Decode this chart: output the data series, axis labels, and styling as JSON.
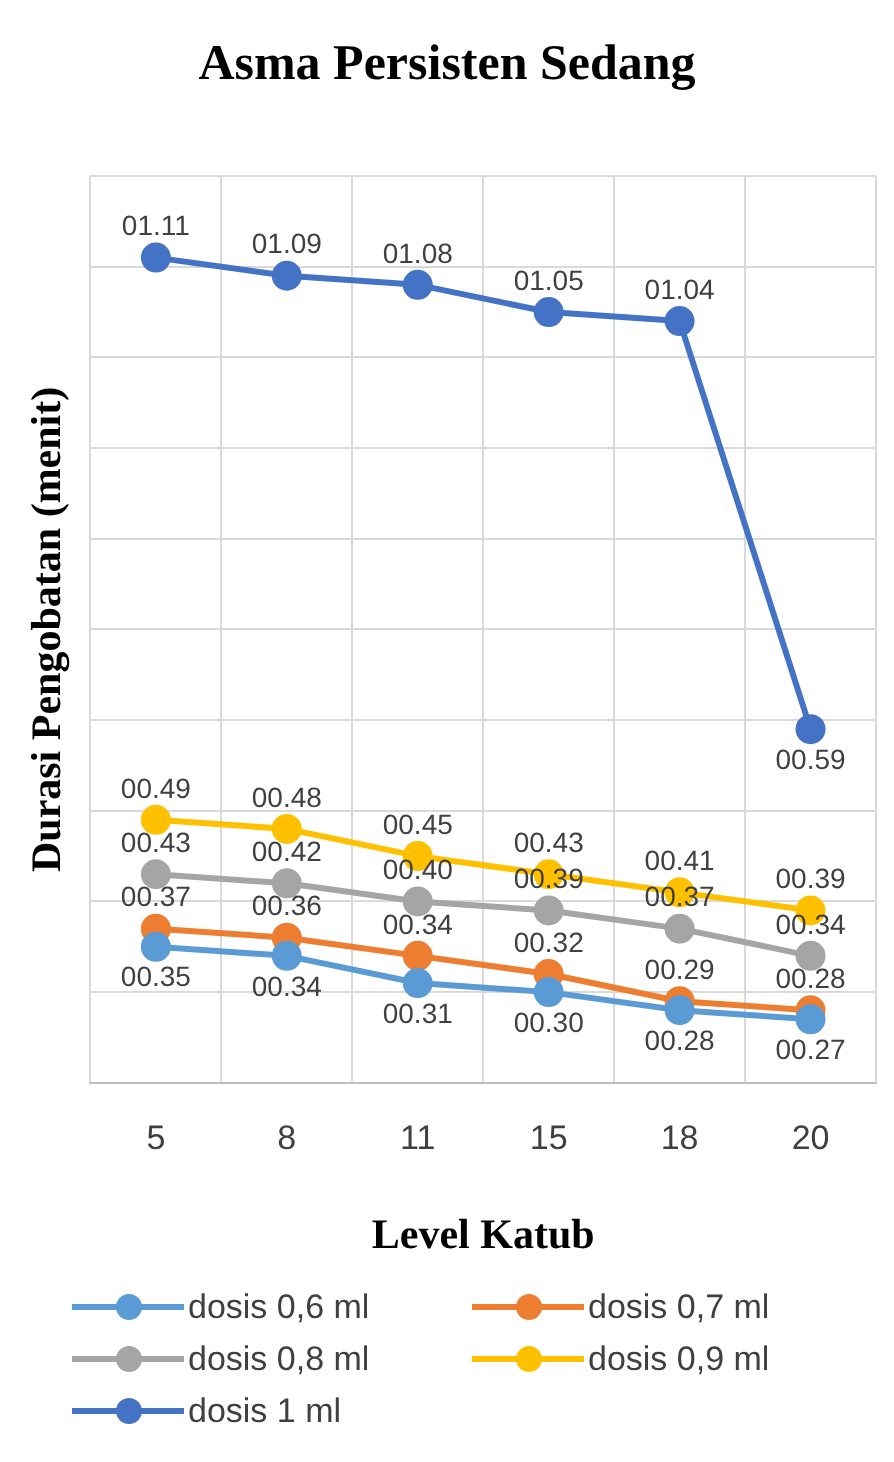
{
  "chart_data": {
    "type": "line",
    "title": "Asma Persisten Sedang",
    "xlabel": "Level Katub",
    "ylabel": "Durasi Pengobatan (menit)",
    "categories": [
      "5",
      "8",
      "11",
      "15",
      "18",
      "20"
    ],
    "tick_labels": "x",
    "grid": true,
    "legend": "bottom",
    "marker": "circle",
    "line_style": "solid",
    "series": [
      {
        "name": "dosis 0,6 ml",
        "color": "#5b9bd5",
        "values": [
          0.35,
          0.34,
          0.31,
          0.3,
          0.28,
          0.27
        ],
        "value_labels": [
          "00.35",
          "00.34",
          "00.31",
          "00.30",
          "00.28",
          "00.27"
        ]
      },
      {
        "name": "dosis 0,7 ml",
        "color": "#ed7d31",
        "values": [
          0.37,
          0.36,
          0.34,
          0.32,
          0.29,
          0.28
        ],
        "value_labels": [
          "00.37",
          "00.36",
          "00.34",
          "00.32",
          "00.29",
          "00.28"
        ]
      },
      {
        "name": "dosis 0,8 ml",
        "color": "#a5a5a5",
        "values": [
          0.43,
          0.42,
          0.4,
          0.39,
          0.37,
          0.34
        ],
        "value_labels": [
          "00.43",
          "00.42",
          "00.40",
          "00.39",
          "00.37",
          "00.34"
        ]
      },
      {
        "name": "dosis 0,9 ml",
        "color": "#ffc000",
        "values": [
          0.49,
          0.48,
          0.45,
          0.43,
          0.41,
          0.39
        ],
        "value_labels": [
          "00.49",
          "00.48",
          "00.45",
          "00.43",
          "00.41",
          "00.39"
        ]
      },
      {
        "name": "dosis 1 ml",
        "color": "#4472c4",
        "values": [
          1.11,
          1.09,
          1.08,
          1.05,
          1.04,
          0.59
        ],
        "value_labels": [
          "01.11",
          "01.09",
          "01.08",
          "01.05",
          "01.04",
          "00.59"
        ]
      }
    ]
  }
}
